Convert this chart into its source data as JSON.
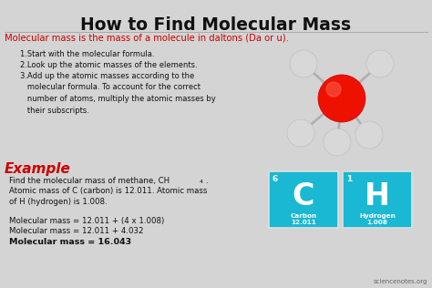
{
  "title": "How to Find Molecular Mass",
  "subtitle": "Molecular mass is the mass of a molecule in daltons (Da or u).",
  "step1": "1.Start with the molecular formula.",
  "step2": "2.Look up the atomic masses of the elements.",
  "step3": "3.Add up the atomic masses according to the\n   molecular formula. To account for the correct\n   number of atoms, multiply the atomic masses by\n   their subscripts.",
  "example_label": "Example",
  "example_line1": "Find the molecular mass of methane, CH",
  "example_sub": "4",
  "example_line2": "Atomic mass of C (carbon) is 12.011. Atomic mass\nof H (hydrogen) is 1.008.",
  "calc_line1": "Molecular mass = 12.011 + (4 x 1.008)",
  "calc_line2": "Molecular mass = 12.011 + 4.032",
  "calc_line3": "Molecular mass = 16.043",
  "watermark": "sciencenotes.org",
  "bg_color": "#d4d4d4",
  "title_color": "#111111",
  "subtitle_color": "#cc0000",
  "body_color": "#111111",
  "example_color": "#cc0000",
  "teal_color": "#1ab8d2",
  "carbon_num": "6",
  "carbon_symbol": "C",
  "carbon_name": "Carbon",
  "carbon_mass": "12.011",
  "hydrogen_num": "1",
  "hydrogen_symbol": "H",
  "hydrogen_name": "Hydrogen",
  "hydrogen_mass": "1.008"
}
